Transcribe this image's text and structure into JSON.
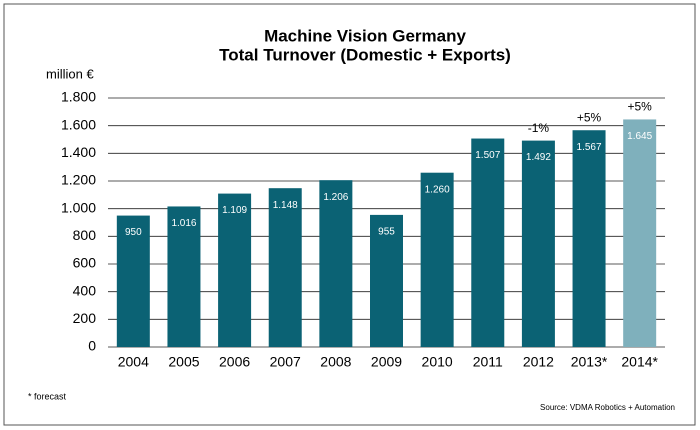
{
  "chart_data": {
    "type": "bar",
    "title": "Machine Vision Germany",
    "subtitle": "Total Turnover (Domestic + Exports)",
    "y_label": "million €",
    "categories": [
      "2004",
      "2005",
      "2006",
      "2007",
      "2008",
      "2009",
      "2010",
      "2011",
      "2012",
      "2013*",
      "2014*"
    ],
    "values": [
      950,
      1016,
      1109,
      1148,
      1206,
      955,
      1260,
      1507,
      1492,
      1567,
      1645
    ],
    "value_labels": [
      "950",
      "1.016",
      "1.109",
      "1.148",
      "1.206",
      "955",
      "1.260",
      "1.507",
      "1.492",
      "1.567",
      "1.645"
    ],
    "colors": [
      "#0b6274",
      "#0b6274",
      "#0b6274",
      "#0b6274",
      "#0b6274",
      "#0b6274",
      "#0b6274",
      "#0b6274",
      "#0b6274",
      "#0b6274",
      "#7fb0bc"
    ],
    "bar_annotations": [
      null,
      null,
      null,
      null,
      null,
      null,
      null,
      null,
      "-1%",
      "+5%",
      "+5%"
    ],
    "ylim": [
      0,
      1800
    ],
    "yticks": [
      0,
      200,
      400,
      600,
      800,
      {
        "value": 1000,
        "label": "1.000"
      },
      {
        "value": 1200,
        "label": "1.200"
      },
      {
        "value": 1400,
        "label": "1.400"
      },
      {
        "value": 1600,
        "label": "1.600"
      },
      {
        "value": 1800,
        "label": "1.800"
      }
    ],
    "grid": true,
    "footnote": "* forecast",
    "source": "Source: VDMA Robotics + Automation"
  }
}
